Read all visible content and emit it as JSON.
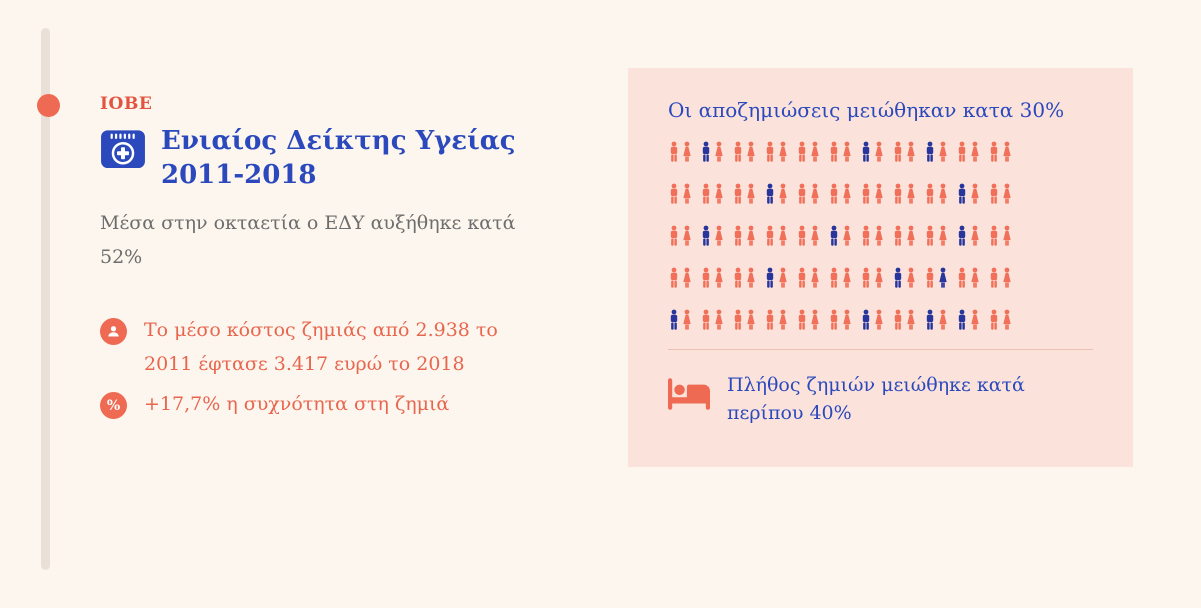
{
  "header": {
    "brand": "IOBE",
    "title_line1": "Ενιαίος Δείκτης Υγείας",
    "title_line2": "2011-2018",
    "subtitle": "Μέσα στην οκταετία ο ΕΔΥ αυξήθηκε κατά 52%"
  },
  "facts": [
    {
      "icon": "person-circle-icon",
      "text": "Το μέσο κόστος ζημιάς από 2.938 το 2011 έφτασε 3.417 ευρώ το 2018"
    },
    {
      "icon": "percent-circle-icon",
      "percent_glyph": "%",
      "text": "+17,7% η συχνότητα στη ζημιά"
    }
  ],
  "panel": {
    "title": "Οι αποζημιώσεις μειώθηκαν κατα 30%",
    "footer_text": "Πλήθος ζημιών μειώθηκε κατά περίπου 40%"
  },
  "colors": {
    "background": "#fdf6ee",
    "panel_background": "#fbe3dc",
    "coral": "#ee6a52",
    "coral_text": "#e8654e",
    "blue_text": "#2b49bd",
    "gray_text": "#6d6d6d",
    "timeline_bar": "#e9e1d8"
  },
  "chart_data": {
    "type": "pictogram",
    "title": "Οι αποζημιώσεις μειώθηκαν κατα 30%",
    "caption": "Πλήθος ζημιών μειώθηκε κατά περίπου 40%",
    "icon_unit": "man-woman-pair",
    "rows_count": 5,
    "pairs_per_row": 11,
    "total_pairs": 55,
    "colors": {
      "c": "#f0705a",
      "b": "#28359c"
    },
    "legend": {
      "c": "coral",
      "b": "blue"
    },
    "grid": [
      [
        "cc",
        "bc",
        "cc",
        "cc",
        "cc",
        "cc",
        "bc",
        "cc",
        "bc",
        "cc",
        "cc"
      ],
      [
        "cc",
        "cc",
        "cc",
        "bc",
        "cc",
        "cc",
        "cc",
        "cc",
        "cc",
        "bc",
        "cc"
      ],
      [
        "cc",
        "bc",
        "cc",
        "cc",
        "cc",
        "bc",
        "cc",
        "cc",
        "cc",
        "bc",
        "cc"
      ],
      [
        "cc",
        "cc",
        "cc",
        "bc",
        "cc",
        "cc",
        "cc",
        "bc",
        "cb",
        "cc",
        "cc"
      ],
      [
        "bc",
        "cc",
        "cc",
        "cc",
        "cc",
        "cc",
        "bc",
        "cc",
        "bc",
        "bc",
        "cc"
      ]
    ]
  }
}
